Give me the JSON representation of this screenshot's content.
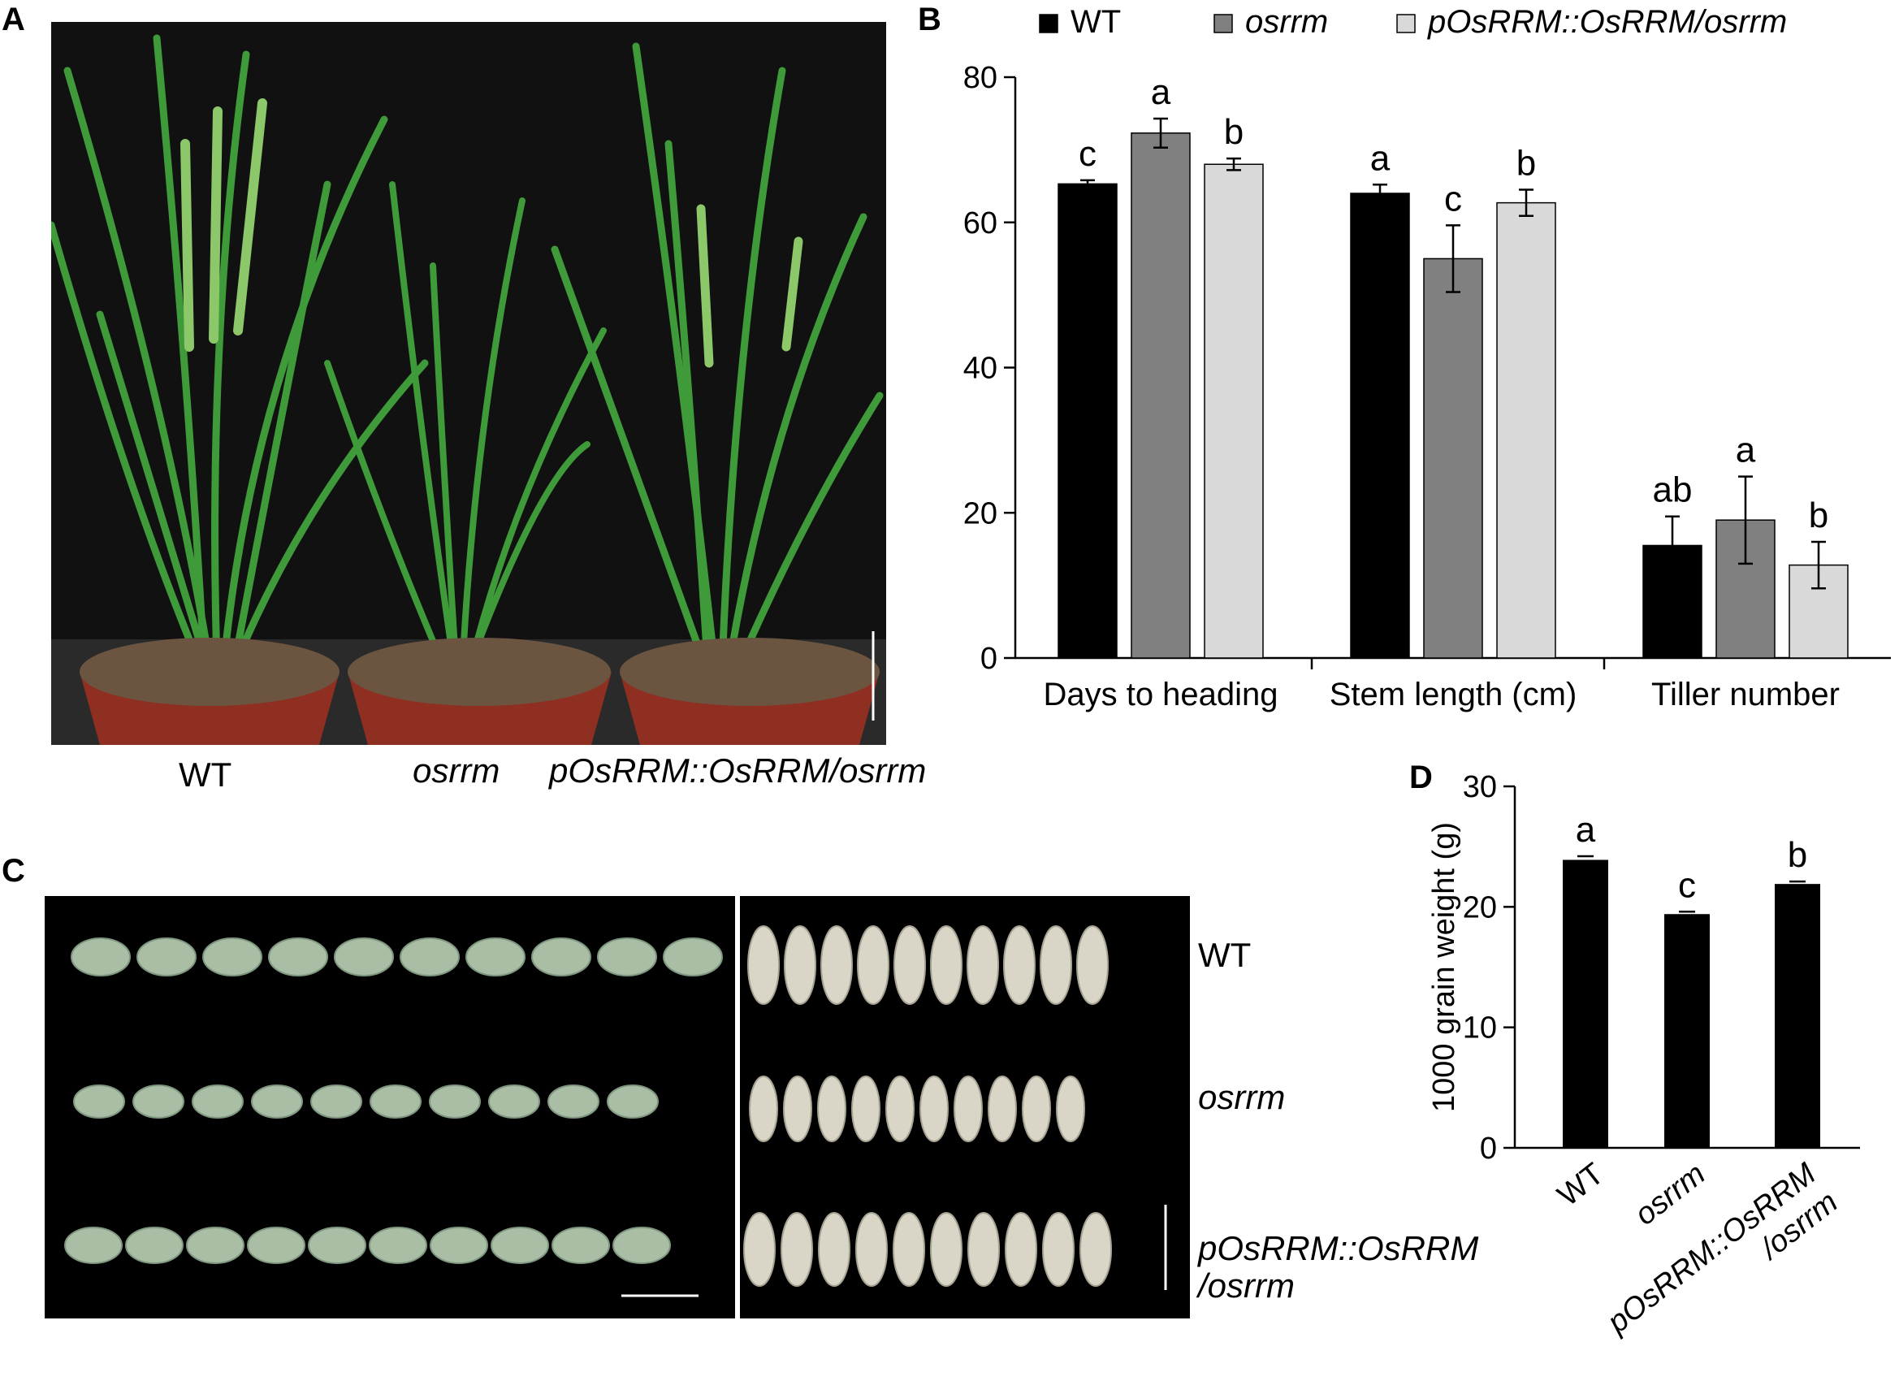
{
  "panel_a": {
    "letter": "A",
    "labels": [
      "WT",
      "osrrm",
      "pOsRRM::OsRRM/osrrm"
    ]
  },
  "panel_b": {
    "letter": "B"
  },
  "panel_c": {
    "letter": "C",
    "row_labels": [
      "WT",
      "osrrm"
    ],
    "row_label_3_line1": "pOsRRM::OsRRM",
    "row_label_3_line2": "/osrrm"
  },
  "panel_d": {
    "letter": "D"
  },
  "colors": {
    "wt": "#000000",
    "osrrm": "#808080",
    "complement": "#d9d9d9",
    "photo_bg": "#000000",
    "plant": "#3c9a3c",
    "pot": "#8e2f22",
    "grain_husk": "#a9bea4",
    "grain_brown": "#d9d6c8"
  },
  "chart_data": [
    {
      "type": "bar",
      "panel": "B",
      "categories": [
        "Days to heading",
        "Stem length (cm)",
        "Tiller number"
      ],
      "series": [
        {
          "name": "WT",
          "values": [
            65.3,
            64.0,
            15.5
          ],
          "errors": [
            0.5,
            1.2,
            4.0
          ],
          "letters": [
            "c",
            "a",
            "ab"
          ],
          "color": "#000000"
        },
        {
          "name": "osrrm",
          "values": [
            72.3,
            55.0,
            19.0
          ],
          "errors": [
            2.0,
            4.6,
            6.0
          ],
          "letters": [
            "a",
            "c",
            "a"
          ],
          "color": "#808080"
        },
        {
          "name": "pOsRRM::OsRRM/osrrm",
          "values": [
            68.0,
            62.7,
            12.8
          ],
          "errors": [
            0.8,
            1.8,
            3.2
          ],
          "letters": [
            "b",
            "b",
            "b"
          ],
          "color": "#d9d9d9"
        }
      ],
      "yticks": [
        "0",
        "20",
        "40",
        "60",
        "80"
      ],
      "ylim": [
        0,
        80
      ],
      "legend_position": "top"
    },
    {
      "type": "bar",
      "panel": "D",
      "categories": [
        "WT",
        "osrrm",
        "pOsRRM::OsRRM\n/osrrm"
      ],
      "values": [
        23.9,
        19.4,
        21.9
      ],
      "errors": [
        0.3,
        0.2,
        0.2
      ],
      "letters": [
        "a",
        "c",
        "b"
      ],
      "ylabel": "1000 grain weight (g)",
      "yticks": [
        "0",
        "10",
        "20",
        "30"
      ],
      "ylim": [
        0,
        30
      ],
      "color": "#000000"
    }
  ]
}
